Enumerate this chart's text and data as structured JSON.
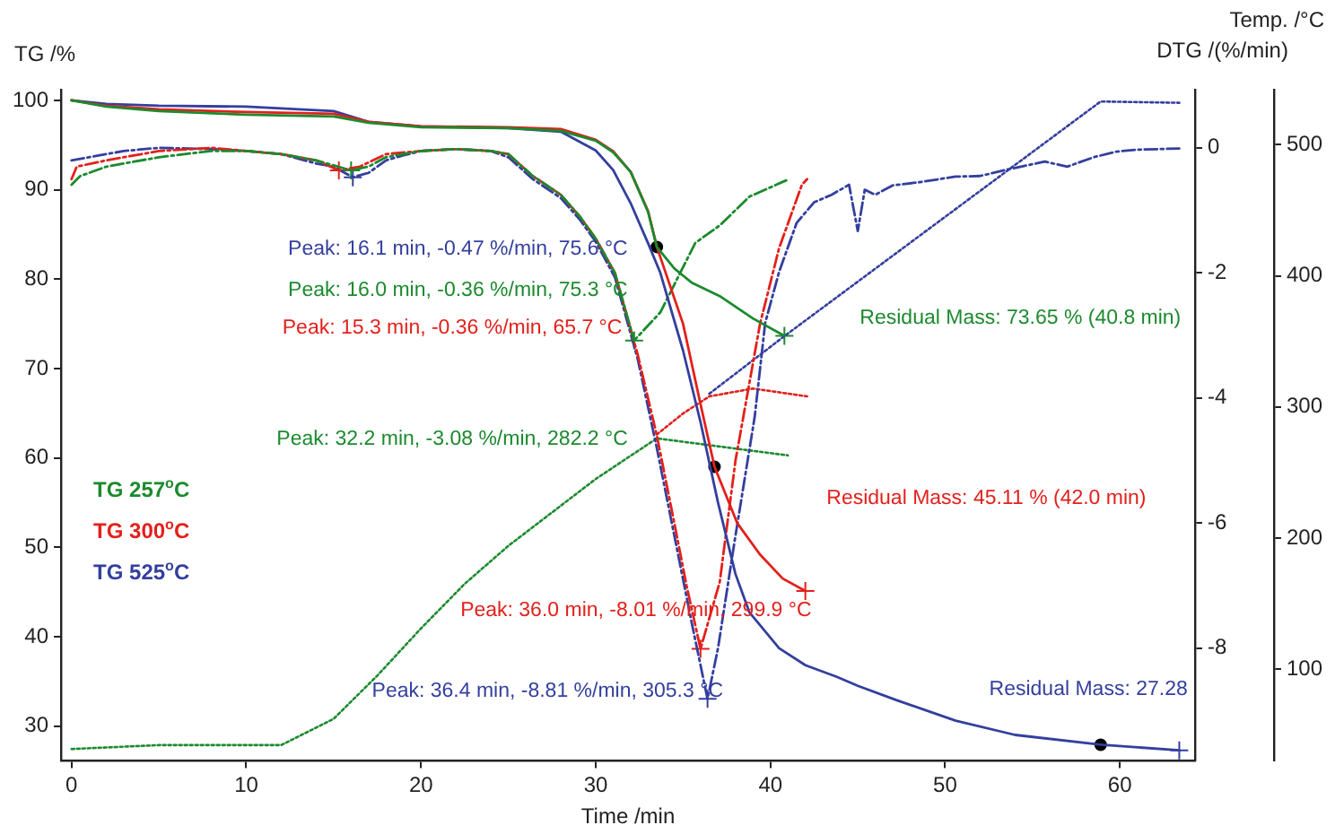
{
  "chart_data": {
    "type": "line",
    "xlabel": "Time /min",
    "ylabel": "TG /%",
    "y2label": "DTG /(%/min)",
    "y3label": "Temp. /°C",
    "xlim": [
      -0.6,
      64.3
    ],
    "xticks": [
      0,
      10,
      20,
      30,
      40,
      50,
      60
    ],
    "ylim": [
      26.1,
      101.2
    ],
    "yticks": [
      30,
      40,
      50,
      60,
      70,
      80,
      90,
      100
    ],
    "y2lim": [
      -9.8,
      0.93
    ],
    "y2ticks": [
      -8,
      -6,
      -4,
      -2,
      0
    ],
    "y3lim": [
      30,
      542
    ],
    "y3ticks": [
      100,
      200,
      300,
      400,
      500
    ],
    "grid": false,
    "legend": "left",
    "series": [
      {
        "name": "TG 257$^{o}$C",
        "axis": "y",
        "line_style": "solid",
        "color": "#1c8a2e",
        "x": [
          0,
          2,
          5,
          10,
          15,
          17,
          20,
          25,
          28,
          30,
          31,
          32,
          33,
          33.5,
          34.5,
          35.5,
          37.1,
          39,
          40.8
        ],
        "values": [
          100,
          99.3,
          98.8,
          98.4,
          98.2,
          97.5,
          97.0,
          96.9,
          96.6,
          95.5,
          94.2,
          92.0,
          87.5,
          83.6,
          81.2,
          79.6,
          78.1,
          75.6,
          73.65
        ]
      },
      {
        "name": "TG 300$^{o}$C",
        "axis": "y",
        "line_style": "solid",
        "color": "#e3201b",
        "x": [
          0,
          2,
          5,
          10,
          15,
          17,
          20,
          25,
          28,
          30,
          31,
          32,
          33,
          33.5,
          35,
          36,
          36.8,
          38.1,
          39.4,
          40.7,
          42.0
        ],
        "values": [
          100,
          99.4,
          99.0,
          98.7,
          98.5,
          97.6,
          97.1,
          97.0,
          96.8,
          95.6,
          94.3,
          92.0,
          87.6,
          83.6,
          75.0,
          66.0,
          59.0,
          52.7,
          49.2,
          46.5,
          45.11
        ]
      },
      {
        "name": "TG 525$^{o}$C",
        "axis": "y",
        "line_style": "solid",
        "color": "#333f9e",
        "x": [
          0,
          2,
          5,
          10,
          15,
          17,
          20,
          25,
          28,
          30,
          31,
          32,
          33,
          33.7,
          35,
          36,
          37,
          38,
          38.8,
          40.5,
          42,
          43.8,
          45,
          47.2,
          50.6,
          54,
          58.9,
          63.4
        ],
        "values": [
          100,
          99.6,
          99.4,
          99.3,
          98.8,
          97.6,
          97.1,
          96.9,
          96.5,
          94.4,
          92.2,
          88.5,
          84.0,
          80.7,
          72,
          64,
          55,
          47,
          42.7,
          38.7,
          36.8,
          35.5,
          34.5,
          32.9,
          30.6,
          29.0,
          27.9,
          27.28
        ]
      },
      {
        "type": "line",
        "axis": "y2",
        "line_style": "dashed",
        "color": "#1c8a2e",
        "x": [
          0,
          0.5,
          2,
          5,
          8,
          10,
          12,
          14,
          16.0,
          17,
          18,
          20,
          22,
          24,
          25,
          26.4,
          28,
          29.1,
          30,
          31.1,
          32.2,
          33.7,
          35.7,
          37.1,
          38.8,
          40.9
        ],
        "values": [
          -0.59,
          -0.45,
          -0.3,
          -0.15,
          -0.05,
          -0.05,
          -0.1,
          -0.2,
          -0.36,
          -0.3,
          -0.15,
          -0.05,
          -0.02,
          -0.05,
          -0.1,
          -0.45,
          -0.75,
          -1.1,
          -1.45,
          -2.0,
          -3.08,
          -2.63,
          -1.52,
          -1.24,
          -0.78,
          -0.52
        ]
      },
      {
        "type": "line",
        "axis": "y2",
        "line_style": "dashed",
        "color": "#e3201b",
        "x": [
          0,
          0.3,
          2,
          5,
          8,
          10,
          12,
          14,
          15.3,
          16.5,
          18,
          20,
          22,
          24,
          25,
          26.4,
          28,
          29.1,
          30,
          31.1,
          32.4,
          33.5,
          34.5,
          35.2,
          36.0,
          37.1,
          38,
          39.4,
          40.5,
          41.8,
          42.1
        ],
        "values": [
          -0.5,
          -0.3,
          -0.2,
          -0.05,
          0.0,
          -0.05,
          -0.1,
          -0.2,
          -0.36,
          -0.3,
          -0.1,
          -0.05,
          -0.02,
          -0.05,
          -0.1,
          -0.45,
          -0.75,
          -1.1,
          -1.45,
          -2.0,
          -3.3,
          -4.6,
          -6.0,
          -7.0,
          -8.01,
          -6.94,
          -5.0,
          -2.82,
          -1.6,
          -0.59,
          -0.5
        ]
      },
      {
        "type": "line",
        "axis": "y2",
        "line_style": "dashed",
        "color": "#333f9e",
        "x": [
          0,
          1,
          3,
          5,
          8,
          10,
          12,
          14,
          15,
          16.1,
          17,
          18,
          19,
          20,
          22,
          24,
          25,
          26.4,
          28,
          29.1,
          30,
          31.1,
          32.4,
          33.5,
          34.5,
          35.5,
          36.4,
          37,
          38,
          39.1,
          39.7,
          40.5,
          41.5,
          42.5,
          43.5,
          44.5,
          45,
          45.4,
          46,
          47,
          48.5,
          50.6,
          52,
          53.5,
          55.7,
          57,
          58.5,
          59.8,
          61,
          63.4
        ],
        "values": [
          -0.2,
          -0.15,
          -0.05,
          0.0,
          -0.02,
          -0.05,
          -0.1,
          -0.25,
          -0.3,
          -0.47,
          -0.4,
          -0.2,
          -0.12,
          -0.05,
          -0.02,
          -0.05,
          -0.15,
          -0.5,
          -0.8,
          -1.15,
          -1.5,
          -2.07,
          -3.37,
          -4.8,
          -6.2,
          -7.6,
          -8.81,
          -8.0,
          -6.2,
          -4.3,
          -2.8,
          -1.98,
          -1.2,
          -0.87,
          -0.75,
          -0.59,
          -1.33,
          -0.67,
          -0.75,
          -0.6,
          -0.55,
          -0.46,
          -0.45,
          -0.35,
          -0.22,
          -0.3,
          -0.15,
          -0.06,
          -0.03,
          -0.01
        ]
      },
      {
        "type": "line",
        "axis": "y3",
        "line_style": "dotted",
        "color": "#1c8a2e",
        "x": [
          0,
          5,
          12,
          15,
          17.5,
          20,
          22.5,
          25,
          30,
          33.5,
          41
        ],
        "values": [
          39,
          42,
          42,
          62,
          95,
          131,
          165,
          194,
          245,
          276,
          263
        ]
      },
      {
        "type": "line",
        "axis": "y3",
        "line_style": "dotted",
        "color": "#e3201b",
        "x": [
          33.5,
          35,
          36.5,
          39,
          42.1
        ],
        "values": [
          279,
          295,
          308,
          314,
          308
        ]
      },
      {
        "type": "line",
        "axis": "y3",
        "line_style": "dotted",
        "color": "#333f9e",
        "x": [
          36.5,
          40.8,
          50,
          58.9,
          63.4
        ],
        "values": [
          310,
          354,
          445,
          533,
          532
        ]
      },
      {
        "type": "scatter",
        "axis": "y2",
        "marker": "cross",
        "color": "#1c8a2e",
        "x": [
          16.0,
          32.2
        ],
        "values": [
          -0.36,
          -3.08
        ]
      },
      {
        "type": "scatter",
        "axis": "y2",
        "marker": "cross",
        "color": "#e3201b",
        "x": [
          15.3,
          36.0
        ],
        "values": [
          -0.36,
          -8.01
        ]
      },
      {
        "type": "scatter",
        "axis": "y2",
        "marker": "cross",
        "color": "#333f9e",
        "x": [
          16.1,
          36.4
        ],
        "values": [
          -0.47,
          -8.81
        ]
      },
      {
        "type": "scatter",
        "axis": "y",
        "marker": "cross",
        "color": "#1c8a2e",
        "x": [
          40.8
        ],
        "values": [
          73.65
        ]
      },
      {
        "type": "scatter",
        "axis": "y",
        "marker": "cross",
        "color": "#e3201b",
        "x": [
          42.0
        ],
        "values": [
          45.11
        ]
      },
      {
        "type": "scatter",
        "axis": "y",
        "marker": "cross",
        "color": "#333f9e",
        "x": [
          63.4
        ],
        "values": [
          27.28
        ]
      },
      {
        "type": "scatter",
        "axis": "y",
        "marker": "circle",
        "color": "#000000",
        "x": [
          33.5,
          36.8,
          58.9
        ],
        "values": [
          83.6,
          59.0,
          27.9
        ]
      }
    ],
    "annotations": [
      "Peak: 16.1 min, -0.47 %/min, 75.6 °C",
      "Peak: 16.0 min, -0.36 %/min, 75.3 °C",
      "Peak: 15.3 min, -0.36 %/min, 65.7 °C",
      "Peak: 32.2 min, -3.08 %/min, 282.2 °C",
      "Peak: 36.0 min, -8.01 %/min, 299.9 °C",
      "Peak: 36.4 min, -8.81 %/min, 305.3 °C",
      "Residual Mass: 73.65 % (40.8 min)",
      "Residual Mass: 45.11 % (42.0 min)",
      "Residual Mass: 27.28"
    ]
  }
}
